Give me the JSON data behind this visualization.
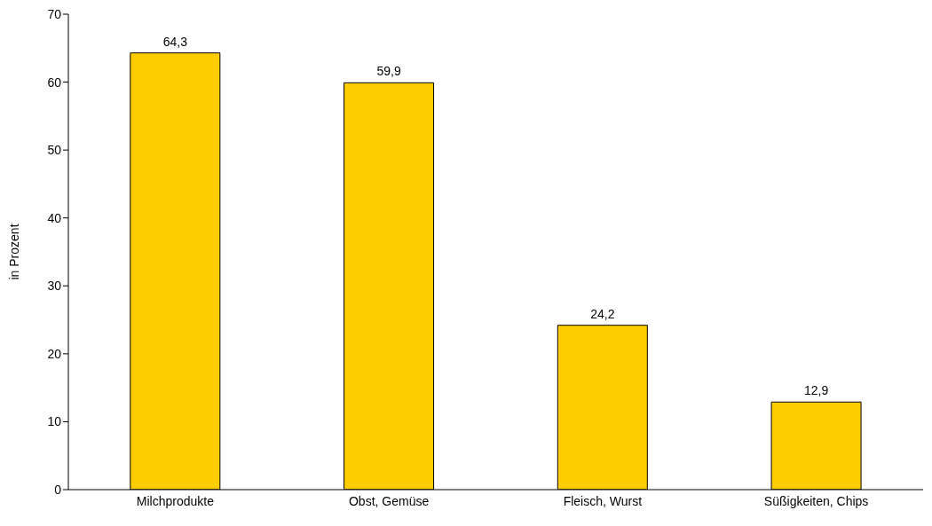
{
  "chart_data": {
    "type": "bar",
    "ylabel": "in Prozent",
    "categories": [
      "Milchprodukte",
      "Obst, Gemüse",
      "Fleisch, Wurst",
      "Süßigkeiten, Chips"
    ],
    "values": [
      64.3,
      59.9,
      24.2,
      12.9
    ],
    "value_labels": [
      "64,3",
      "59,9",
      "24,2",
      "12,9"
    ],
    "color": "#ffcc00",
    "ylim": [
      0,
      70
    ],
    "yticks": [
      0,
      10,
      20,
      30,
      40,
      50,
      60,
      70
    ],
    "grid": false,
    "legend": false
  }
}
